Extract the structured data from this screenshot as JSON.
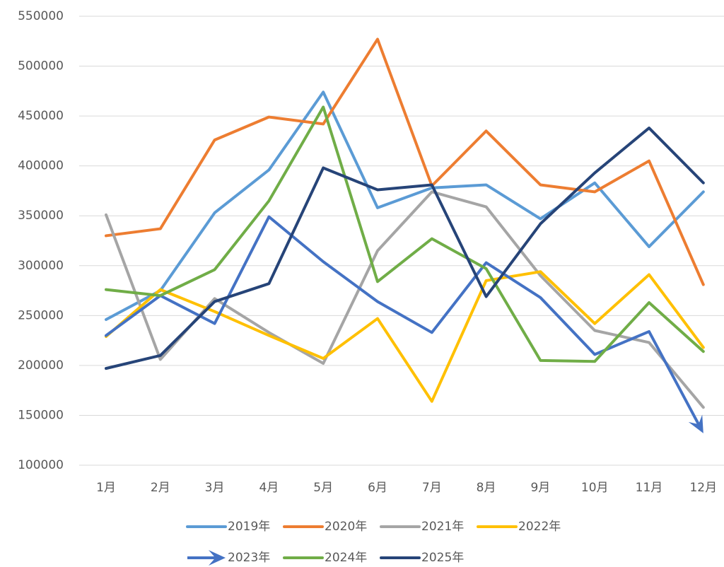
{
  "chart_data": {
    "type": "line",
    "categories": [
      "1月",
      "2月",
      "3月",
      "4月",
      "5月",
      "6月",
      "7月",
      "8月",
      "9月",
      "10月",
      "11月",
      "12月"
    ],
    "ylim": [
      100000,
      550000
    ],
    "yticks": [
      100000,
      150000,
      200000,
      250000,
      300000,
      350000,
      400000,
      450000,
      500000,
      550000
    ],
    "grid": true,
    "legend": "bottom",
    "series": [
      {
        "name": "2019年",
        "color": "#5b9bd5",
        "values": [
          246000,
          275000,
          353000,
          396000,
          474000,
          358000,
          378000,
          381000,
          347000,
          383000,
          319000,
          374000
        ]
      },
      {
        "name": "2020年",
        "color": "#ed7d31",
        "values": [
          330000,
          337000,
          426000,
          449000,
          442000,
          527000,
          380000,
          435000,
          381000,
          374000,
          405000,
          281000
        ]
      },
      {
        "name": "2021年",
        "color": "#a5a5a5",
        "values": [
          351000,
          206000,
          267000,
          233000,
          202000,
          315000,
          374000,
          359000,
          290000,
          235000,
          223000,
          158000
        ]
      },
      {
        "name": "2022年",
        "color": "#ffc000",
        "values": [
          229000,
          276000,
          254000,
          230000,
          207000,
          247000,
          164000,
          285000,
          294000,
          242000,
          291000,
          218000
        ]
      },
      {
        "name": "2023年",
        "color": "#4472c4",
        "marker_end": "arrow",
        "values": [
          230000,
          270000,
          242000,
          349000,
          304000,
          264000,
          233000,
          303000,
          268000,
          211000,
          234000,
          132000
        ]
      },
      {
        "name": "2024年",
        "color": "#70ad47",
        "values": [
          276000,
          270000,
          296000,
          365000,
          459000,
          284000,
          327000,
          297000,
          205000,
          204000,
          263000,
          214000
        ]
      },
      {
        "name": "2025年",
        "color": "#264478",
        "values": [
          197000,
          210000,
          264000,
          282000,
          398000,
          376000,
          381000,
          269000,
          342000,
          393000,
          438000,
          383000
        ]
      }
    ]
  }
}
